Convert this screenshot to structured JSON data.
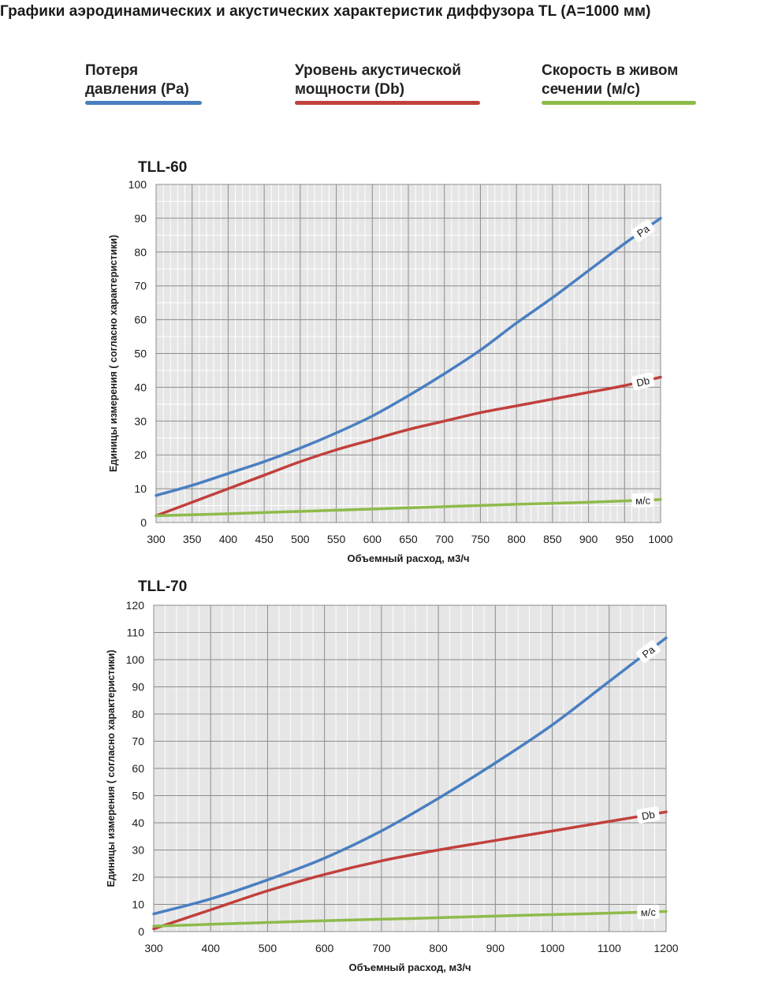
{
  "page_title": "Графики аэродинамических и акустических характеристик  диффузора TL (А=1000 мм)",
  "legend": [
    {
      "line1": "Потеря",
      "line2": "давления (Pa)",
      "color": "#4a7fc1"
    },
    {
      "line1": "Уровень акустической",
      "line2": "мощности (Db)",
      "color": "#c1403d"
    },
    {
      "line1": "Скорость в живом",
      "line2": "сечении (м/с)",
      "color": "#8dbb4a"
    }
  ],
  "chart_data": [
    {
      "type": "line",
      "title": "TLL-60",
      "xlabel": "Объемный расход, м3/ч",
      "ylabel": "Единицы измерения ( согласно характеристики)",
      "xlim": [
        300,
        1000
      ],
      "ylim": [
        0,
        100
      ],
      "x_ticks": [
        300,
        350,
        400,
        450,
        500,
        550,
        600,
        650,
        700,
        750,
        800,
        850,
        900,
        950,
        1000
      ],
      "y_ticks": [
        0,
        10,
        20,
        30,
        40,
        50,
        60,
        70,
        80,
        90,
        100
      ],
      "grid": true,
      "series": [
        {
          "name": "Pa",
          "color": "#4a7fc1",
          "x": [
            300,
            350,
            400,
            450,
            500,
            550,
            600,
            650,
            700,
            750,
            800,
            850,
            900,
            950,
            1000
          ],
          "values": [
            8,
            11,
            14.5,
            18,
            22,
            26.5,
            31.5,
            37.5,
            44,
            51,
            59,
            66.5,
            74.5,
            82.5,
            90
          ]
        },
        {
          "name": "Db",
          "color": "#c1403d",
          "x": [
            300,
            350,
            400,
            450,
            500,
            550,
            600,
            650,
            700,
            750,
            800,
            850,
            900,
            950,
            1000
          ],
          "values": [
            2,
            6,
            10,
            14,
            18,
            21.5,
            24.5,
            27.5,
            30,
            32.5,
            34.5,
            36.5,
            38.5,
            40.5,
            43
          ]
        },
        {
          "name": "м/с",
          "color": "#8dbb4a",
          "x": [
            300,
            400,
            500,
            600,
            700,
            800,
            900,
            1000
          ],
          "values": [
            2,
            2.6,
            3.3,
            4,
            4.7,
            5.4,
            6,
            6.8
          ]
        }
      ]
    },
    {
      "type": "line",
      "title": "TLL-70",
      "xlabel": "Объемный расход, м3/ч",
      "ylabel": "Единицы измерения ( согласно характеристики)",
      "xlim": [
        300,
        1200
      ],
      "ylim": [
        0,
        120
      ],
      "x_ticks": [
        300,
        400,
        500,
        600,
        700,
        800,
        900,
        1000,
        1100,
        1200
      ],
      "y_ticks": [
        0,
        10,
        20,
        30,
        40,
        50,
        60,
        70,
        80,
        90,
        100,
        110,
        120
      ],
      "grid": true,
      "series": [
        {
          "name": "Pa",
          "color": "#4a7fc1",
          "x": [
            300,
            400,
            500,
            600,
            700,
            800,
            900,
            1000,
            1100,
            1200
          ],
          "values": [
            6.5,
            12,
            19,
            27,
            37,
            49,
            62,
            76,
            92,
            108
          ]
        },
        {
          "name": "Db",
          "color": "#c1403d",
          "x": [
            300,
            400,
            500,
            600,
            700,
            800,
            900,
            1000,
            1100,
            1200
          ],
          "values": [
            1,
            8,
            15,
            21,
            26,
            30,
            33.5,
            37,
            40.5,
            44
          ]
        },
        {
          "name": "м/с",
          "color": "#8dbb4a",
          "x": [
            300,
            450,
            600,
            750,
            900,
            1050,
            1200
          ],
          "values": [
            2,
            3,
            4,
            4.8,
            5.7,
            6.5,
            7.4
          ]
        }
      ]
    }
  ]
}
